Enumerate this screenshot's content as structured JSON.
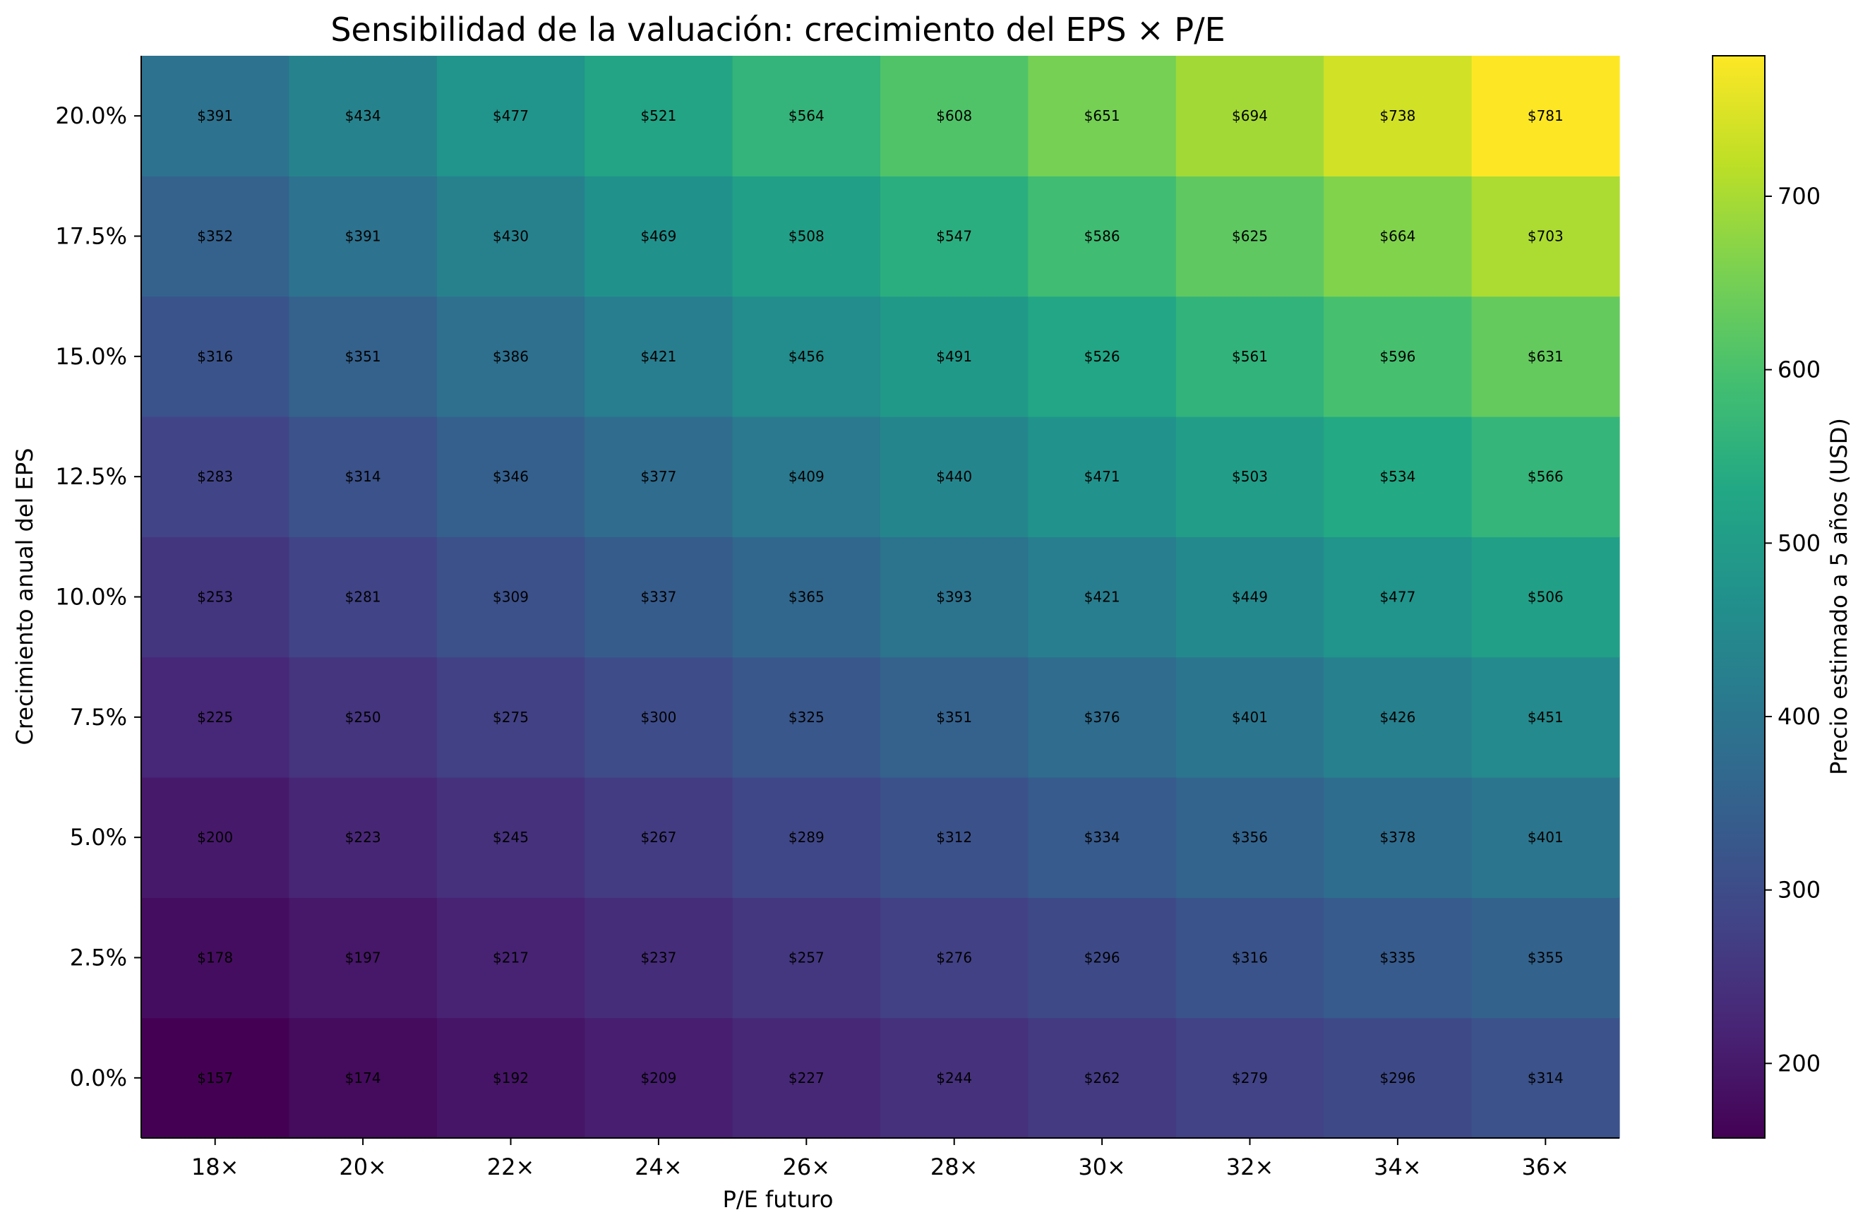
{
  "chart_data": {
    "type": "heatmap",
    "title": "Sensibilidad de la valuación: crecimiento del EPS × P/E",
    "xlabel": "P/E futuro",
    "ylabel": "Crecimiento anual del EPS",
    "x_categories": [
      "18×",
      "20×",
      "22×",
      "24×",
      "26×",
      "28×",
      "30×",
      "32×",
      "34×",
      "36×"
    ],
    "y_categories": [
      "0.0%",
      "2.5%",
      "5.0%",
      "7.5%",
      "10.0%",
      "12.5%",
      "15.0%",
      "17.5%",
      "20.0%"
    ],
    "values": [
      [
        157,
        174,
        192,
        209,
        227,
        244,
        262,
        279,
        296,
        314
      ],
      [
        178,
        197,
        217,
        237,
        257,
        276,
        296,
        316,
        335,
        355
      ],
      [
        200,
        223,
        245,
        267,
        289,
        312,
        334,
        356,
        378,
        401
      ],
      [
        225,
        250,
        275,
        300,
        325,
        351,
        376,
        401,
        426,
        451
      ],
      [
        253,
        281,
        309,
        337,
        365,
        393,
        421,
        449,
        477,
        506
      ],
      [
        283,
        314,
        346,
        377,
        409,
        440,
        471,
        503,
        534,
        566
      ],
      [
        316,
        351,
        386,
        421,
        456,
        491,
        526,
        561,
        596,
        631
      ],
      [
        352,
        391,
        430,
        469,
        508,
        547,
        586,
        625,
        664,
        703
      ],
      [
        391,
        434,
        477,
        521,
        564,
        608,
        651,
        694,
        738,
        781
      ]
    ],
    "cell_labels": [
      [
        "$157",
        "$174",
        "$192",
        "$209",
        "$227",
        "$244",
        "$262",
        "$279",
        "$296",
        "$314"
      ],
      [
        "$178",
        "$197",
        "$217",
        "$237",
        "$257",
        "$276",
        "$296",
        "$316",
        "$335",
        "$355"
      ],
      [
        "$200",
        "$223",
        "$245",
        "$267",
        "$289",
        "$312",
        "$334",
        "$356",
        "$378",
        "$401"
      ],
      [
        "$225",
        "$250",
        "$275",
        "$300",
        "$325",
        "$351",
        "$376",
        "$401",
        "$426",
        "$451"
      ],
      [
        "$253",
        "$281",
        "$309",
        "$337",
        "$365",
        "$393",
        "$421",
        "$449",
        "$477",
        "$506"
      ],
      [
        "$283",
        "$314",
        "$346",
        "$377",
        "$409",
        "$440",
        "$471",
        "$503",
        "$534",
        "$566"
      ],
      [
        "$316",
        "$351",
        "$386",
        "$421",
        "$456",
        "$491",
        "$526",
        "$561",
        "$596",
        "$631"
      ],
      [
        "$352",
        "$391",
        "$430",
        "$469",
        "$508",
        "$547",
        "$586",
        "$625",
        "$664",
        "$703"
      ],
      [
        "$391",
        "$434",
        "$477",
        "$521",
        "$564",
        "$608",
        "$651",
        "$694",
        "$738",
        "$781"
      ]
    ],
    "colormap": "viridis",
    "value_range": [
      157,
      781
    ],
    "colorbar": {
      "label": "Precio estimado a 5 años (USD)",
      "ticks": [
        200,
        300,
        400,
        500,
        600,
        700
      ],
      "tick_labels": [
        "200",
        "300",
        "400",
        "500",
        "600",
        "700"
      ]
    },
    "grid": false,
    "legend": "none"
  }
}
